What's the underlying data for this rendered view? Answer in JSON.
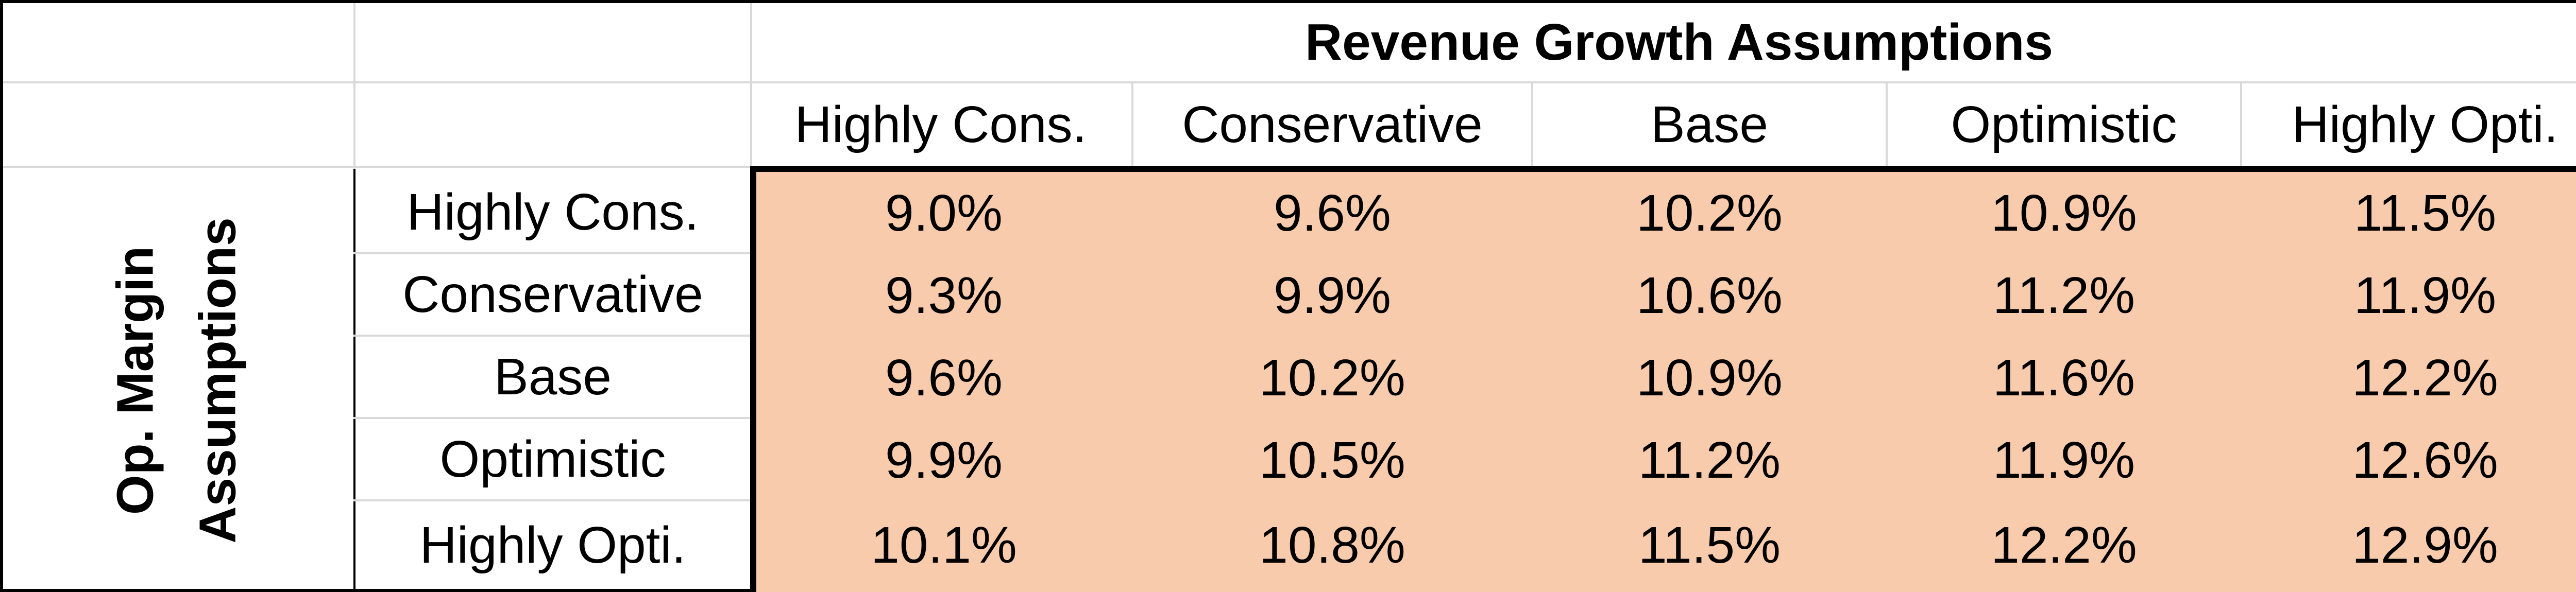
{
  "column_group_title": "Revenue Growth Assumptions",
  "row_group_title_line1": "Op. Margin",
  "row_group_title_line2": "Assumptions",
  "columns": [
    "Highly Cons.",
    "Conservative",
    "Base",
    "Optimistic",
    "Highly Opti."
  ],
  "rows": [
    {
      "label": "Highly Cons.",
      "values": [
        "9.0%",
        "9.6%",
        "10.2%",
        "10.9%",
        "11.5%"
      ]
    },
    {
      "label": "Conservative",
      "values": [
        "9.3%",
        "9.9%",
        "10.6%",
        "11.2%",
        "11.9%"
      ]
    },
    {
      "label": "Base",
      "values": [
        "9.6%",
        "10.2%",
        "10.9%",
        "11.6%",
        "12.2%"
      ]
    },
    {
      "label": "Optimistic",
      "values": [
        "9.9%",
        "10.5%",
        "11.2%",
        "11.9%",
        "12.6%"
      ]
    },
    {
      "label": "Highly Opti.",
      "values": [
        "10.1%",
        "10.8%",
        "11.5%",
        "12.2%",
        "12.9%"
      ]
    }
  ],
  "colors": {
    "data_fill": "#f8cbad",
    "gridline": "#d9d9d9",
    "border": "#000000"
  }
}
